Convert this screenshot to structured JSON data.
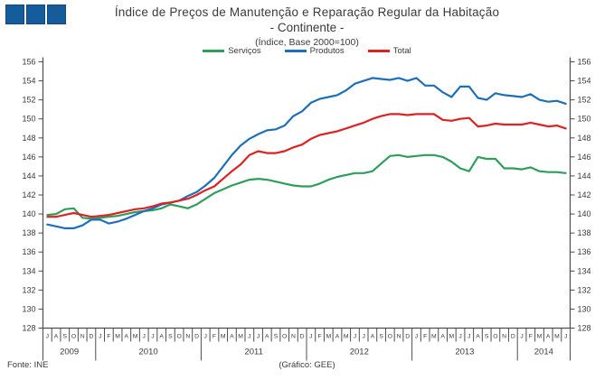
{
  "header": {
    "title_line1": "Índice de Preços de Manutenção e Reparação Regular da Habitação",
    "title_line2": "- Continente -",
    "subtitle": "(Índice, Base 2000=100)"
  },
  "footer": {
    "source": "Fonte: INE",
    "credit": "(Gráfico: GEE)"
  },
  "colors": {
    "logo_blue": "#155c9c",
    "axis": "#4d4d4d",
    "text": "#3a3a3a",
    "servicos_green": "#2e9e5b",
    "produtos_blue": "#1f6fb8",
    "total_red": "#dd2222"
  },
  "chart_data": {
    "type": "line",
    "title": "Índice de Preços de Manutenção e Reparação Regular da Habitação - Continente - (Índice, Base 2000=100)",
    "xlabel": "",
    "ylabel": "",
    "ylim": [
      128,
      156
    ],
    "ytick_step": 2,
    "grid": false,
    "legend_position": "top",
    "x_month_labels": [
      "J",
      "A",
      "S",
      "O",
      "N",
      "D",
      "J",
      "F",
      "M",
      "A",
      "M",
      "J",
      "J",
      "A",
      "S",
      "O",
      "N",
      "D",
      "J",
      "F",
      "M",
      "A",
      "M",
      "J",
      "J",
      "A",
      "S",
      "O",
      "N",
      "D",
      "J",
      "F",
      "M",
      "A",
      "M",
      "J",
      "J",
      "A",
      "S",
      "O",
      "N",
      "D",
      "J",
      "F",
      "M",
      "A",
      "M",
      "J",
      "J",
      "A",
      "S",
      "O",
      "N",
      "D",
      "J",
      "F",
      "M",
      "A",
      "M",
      "J"
    ],
    "year_groups": [
      {
        "label": "2009",
        "start": 0,
        "count": 6
      },
      {
        "label": "2010",
        "start": 6,
        "count": 12
      },
      {
        "label": "2011",
        "start": 18,
        "count": 12
      },
      {
        "label": "2012",
        "start": 30,
        "count": 12
      },
      {
        "label": "2013",
        "start": 42,
        "count": 12
      },
      {
        "label": "2014",
        "start": 54,
        "count": 6
      }
    ],
    "series": [
      {
        "name": "Serviços",
        "color": "#2e9e5b",
        "values": [
          139.9,
          140.0,
          140.5,
          140.6,
          139.6,
          139.5,
          139.6,
          139.7,
          139.8,
          140.0,
          140.2,
          140.3,
          140.4,
          140.6,
          141.0,
          140.8,
          140.6,
          141.0,
          141.6,
          142.2,
          142.6,
          143.0,
          143.3,
          143.6,
          143.7,
          143.6,
          143.4,
          143.2,
          143.0,
          142.9,
          142.9,
          143.2,
          143.6,
          143.9,
          144.1,
          144.3,
          144.3,
          144.5,
          145.3,
          146.1,
          146.2,
          146.0,
          146.1,
          146.2,
          146.2,
          146.0,
          145.5,
          144.8,
          144.5,
          146.0,
          145.8,
          145.8,
          144.8,
          144.8,
          144.7,
          144.9,
          144.5,
          144.4,
          144.4,
          144.3
        ]
      },
      {
        "name": "Produtos",
        "color": "#1f6fb8",
        "values": [
          138.9,
          138.7,
          138.5,
          138.5,
          138.8,
          139.4,
          139.4,
          139.0,
          139.2,
          139.5,
          139.9,
          140.3,
          140.6,
          141.0,
          141.2,
          141.4,
          141.9,
          142.3,
          143.0,
          143.8,
          145.0,
          146.2,
          147.2,
          147.9,
          148.4,
          148.8,
          148.9,
          149.3,
          150.3,
          150.8,
          151.7,
          152.1,
          152.3,
          152.5,
          153.0,
          153.7,
          154.0,
          154.3,
          154.2,
          154.1,
          154.3,
          154.0,
          154.3,
          153.5,
          153.5,
          152.8,
          152.3,
          153.4,
          153.4,
          152.2,
          152.0,
          152.7,
          152.5,
          152.4,
          152.3,
          152.6,
          152.0,
          151.8,
          151.9,
          151.6
        ]
      },
      {
        "name": "Total",
        "color": "#dd2222",
        "values": [
          139.7,
          139.7,
          139.9,
          140.1,
          139.9,
          139.7,
          139.8,
          139.9,
          140.1,
          140.3,
          140.5,
          140.6,
          140.8,
          141.1,
          141.2,
          141.4,
          141.6,
          142.0,
          142.5,
          142.9,
          143.7,
          144.5,
          145.2,
          146.2,
          146.6,
          146.4,
          146.4,
          146.6,
          147.0,
          147.3,
          147.9,
          148.3,
          148.5,
          148.7,
          149.0,
          149.3,
          149.6,
          150.0,
          150.3,
          150.5,
          150.5,
          150.4,
          150.5,
          150.5,
          150.5,
          149.9,
          149.8,
          150.0,
          150.1,
          149.2,
          149.3,
          149.5,
          149.4,
          149.4,
          149.4,
          149.6,
          149.4,
          149.2,
          149.3,
          149.0
        ]
      }
    ]
  }
}
